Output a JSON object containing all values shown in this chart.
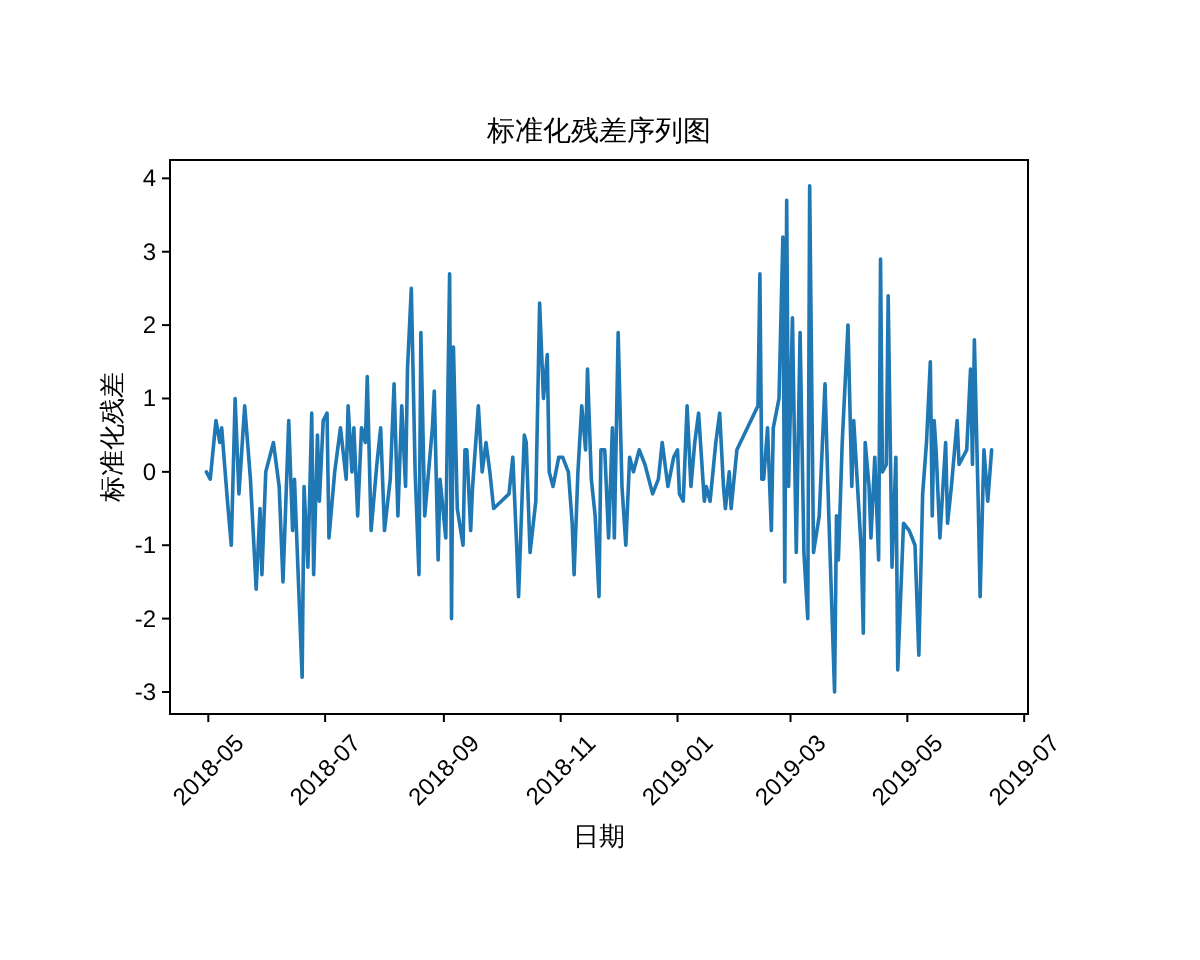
{
  "chart_data": {
    "type": "line",
    "title": "标准化残差序列图",
    "xlabel": "日期",
    "ylabel": "标准化残差",
    "xlim": [
      "2018-04-11",
      "2019-07-03"
    ],
    "xticks": [
      "2018-05",
      "2018-07",
      "2018-09",
      "2018-11",
      "2019-01",
      "2019-03",
      "2019-05",
      "2019-07"
    ],
    "ylim": [
      -3.3,
      4.25
    ],
    "yticks": [
      -3,
      -2,
      -1,
      0,
      1,
      2,
      3,
      4
    ],
    "x": [
      "2018-04-30",
      "2018-05-02",
      "2018-05-05",
      "2018-05-07",
      "2018-05-08",
      "2018-05-11",
      "2018-05-13",
      "2018-05-15",
      "2018-05-17",
      "2018-05-20",
      "2018-05-23",
      "2018-05-24",
      "2018-05-26",
      "2018-05-28",
      "2018-05-29",
      "2018-05-31",
      "2018-06-04",
      "2018-06-07",
      "2018-06-09",
      "2018-06-12",
      "2018-06-14",
      "2018-06-15",
      "2018-06-19",
      "2018-06-20",
      "2018-06-22",
      "2018-06-24",
      "2018-06-25",
      "2018-06-27",
      "2018-06-28",
      "2018-06-30",
      "2018-07-02",
      "2018-07-03",
      "2018-07-06",
      "2018-07-09",
      "2018-07-12",
      "2018-07-13",
      "2018-07-15",
      "2018-07-16",
      "2018-07-18",
      "2018-07-20",
      "2018-07-22",
      "2018-07-23",
      "2018-07-25",
      "2018-07-28",
      "2018-07-30",
      "2018-08-01",
      "2018-08-04",
      "2018-08-06",
      "2018-08-08",
      "2018-08-10",
      "2018-08-12",
      "2018-08-13",
      "2018-08-15",
      "2018-08-17",
      "2018-08-19",
      "2018-08-20",
      "2018-08-22",
      "2018-08-24",
      "2018-08-26",
      "2018-08-27",
      "2018-08-29",
      "2018-08-30",
      "2018-09-02",
      "2018-09-04",
      "2018-09-05",
      "2018-09-06",
      "2018-09-08",
      "2018-09-11",
      "2018-09-12",
      "2018-09-13",
      "2018-09-15",
      "2018-09-16",
      "2018-09-19",
      "2018-09-21",
      "2018-09-23",
      "2018-09-25",
      "2018-09-27",
      "2018-10-01",
      "2018-10-05",
      "2018-10-07",
      "2018-10-09",
      "2018-10-10",
      "2018-10-13",
      "2018-10-14",
      "2018-10-16",
      "2018-10-19",
      "2018-10-21",
      "2018-10-23",
      "2018-10-25",
      "2018-10-26",
      "2018-10-28",
      "2018-10-31",
      "2018-11-02",
      "2018-11-05",
      "2018-11-07",
      "2018-11-08",
      "2018-11-10",
      "2018-11-12",
      "2018-11-14",
      "2018-11-15",
      "2018-11-17",
      "2018-11-19",
      "2018-11-21",
      "2018-11-22",
      "2018-11-24",
      "2018-11-26",
      "2018-11-28",
      "2018-11-29",
      "2018-12-01",
      "2018-12-03",
      "2018-12-05",
      "2018-12-07",
      "2018-12-09",
      "2018-12-12",
      "2018-12-15",
      "2018-12-19",
      "2018-12-22",
      "2018-12-24",
      "2018-12-27",
      "2018-12-30",
      "2019-01-01",
      "2019-01-02",
      "2019-01-04",
      "2019-01-06",
      "2019-01-08",
      "2019-01-10",
      "2019-01-12",
      "2019-01-15",
      "2019-01-16",
      "2019-01-18",
      "2019-01-21",
      "2019-01-23",
      "2019-01-25",
      "2019-01-26",
      "2019-01-28",
      "2019-01-29",
      "2019-02-01",
      "2019-02-12",
      "2019-02-13",
      "2019-02-14",
      "2019-02-15",
      "2019-02-17",
      "2019-02-19",
      "2019-02-20",
      "2019-02-23",
      "2019-02-25",
      "2019-02-26",
      "2019-02-27",
      "2019-02-28",
      "2019-03-02",
      "2019-03-04",
      "2019-03-06",
      "2019-03-08",
      "2019-03-10",
      "2019-03-11",
      "2019-03-13",
      "2019-03-16",
      "2019-03-19",
      "2019-03-21",
      "2019-03-24",
      "2019-03-25",
      "2019-03-26",
      "2019-03-28",
      "2019-03-31",
      "2019-04-02",
      "2019-04-03",
      "2019-04-07",
      "2019-04-08",
      "2019-04-09",
      "2019-04-11",
      "2019-04-12",
      "2019-04-14",
      "2019-04-16",
      "2019-04-17",
      "2019-04-18",
      "2019-04-20",
      "2019-04-21",
      "2019-04-23",
      "2019-04-25",
      "2019-04-26",
      "2019-04-29",
      "2019-05-02",
      "2019-05-05",
      "2019-05-07",
      "2019-05-09",
      "2019-05-11",
      "2019-05-13",
      "2019-05-14",
      "2019-05-15",
      "2019-05-16",
      "2019-05-18",
      "2019-05-21",
      "2019-05-22",
      "2019-05-24",
      "2019-05-27",
      "2019-05-28",
      "2019-06-01",
      "2019-06-03",
      "2019-06-04",
      "2019-06-05",
      "2019-06-07",
      "2019-06-08",
      "2019-06-10",
      "2019-06-12",
      "2019-06-14"
    ],
    "series": [
      {
        "color": "#1f77b4",
        "values": [
          0.0,
          -0.1,
          0.7,
          0.4,
          0.6,
          -0.4,
          -1.0,
          1.0,
          -0.3,
          0.9,
          -0.1,
          -0.6,
          -1.6,
          -0.5,
          -1.4,
          0.0,
          0.4,
          -0.2,
          -1.5,
          0.7,
          -0.8,
          -0.1,
          -2.8,
          -0.2,
          -1.3,
          0.8,
          -1.4,
          0.5,
          -0.4,
          0.7,
          0.8,
          -0.9,
          0.0,
          0.6,
          -0.1,
          0.9,
          0.0,
          0.6,
          -0.6,
          0.6,
          0.4,
          1.3,
          -0.8,
          0.1,
          0.6,
          -0.8,
          -0.1,
          1.2,
          -0.6,
          0.9,
          -0.2,
          1.4,
          2.5,
          0.0,
          -1.4,
          1.9,
          -0.6,
          0.0,
          0.6,
          1.1,
          -1.2,
          -0.1,
          -0.9,
          2.7,
          -2.0,
          1.7,
          -0.5,
          -1.0,
          0.3,
          0.3,
          -0.8,
          -0.2,
          0.9,
          0.0,
          0.4,
          0.0,
          -0.5,
          -0.4,
          -0.3,
          0.2,
          -1.0,
          -1.7,
          0.5,
          0.4,
          -1.1,
          -0.4,
          2.3,
          1.0,
          1.6,
          0.0,
          -0.2,
          0.2,
          0.2,
          0.0,
          -0.7,
          -1.4,
          0.0,
          0.9,
          0.3,
          1.4,
          -0.1,
          -0.6,
          -1.7,
          0.3,
          0.3,
          -0.9,
          0.6,
          -0.9,
          1.9,
          -0.2,
          -1.0,
          0.2,
          0.0,
          0.3,
          0.1,
          -0.3,
          -0.1,
          0.4,
          -0.2,
          0.2,
          0.3,
          -0.3,
          -0.4,
          0.9,
          -0.2,
          0.4,
          0.8,
          -0.4,
          -0.2,
          -0.4,
          0.4,
          0.8,
          -0.2,
          -0.5,
          0.0,
          -0.5,
          0.3,
          0.9,
          2.7,
          -0.1,
          -0.1,
          0.6,
          -0.8,
          0.6,
          1.0,
          3.2,
          -1.5,
          3.7,
          -0.2,
          2.1,
          -1.1,
          1.9,
          -1.1,
          -2.0,
          3.9,
          -1.1,
          -0.6,
          1.2,
          -0.6,
          -3.0,
          -0.6,
          -1.2,
          0.4,
          2.0,
          -0.2,
          0.7,
          -1.1,
          -2.2,
          0.4,
          -0.2,
          -0.9,
          0.2,
          -1.2,
          2.9,
          0.0,
          0.1,
          2.4,
          -1.3,
          0.2,
          -2.7,
          -0.7,
          -0.8,
          -1.0,
          -2.5,
          -0.3,
          0.4,
          1.5,
          -0.6,
          0.7,
          0.3,
          -0.9,
          0.4,
          -0.7,
          -0.2,
          0.7,
          0.1,
          0.3,
          1.4,
          0.1,
          1.8,
          -0.4,
          -1.7,
          0.3,
          -0.4,
          0.3
        ]
      }
    ]
  }
}
